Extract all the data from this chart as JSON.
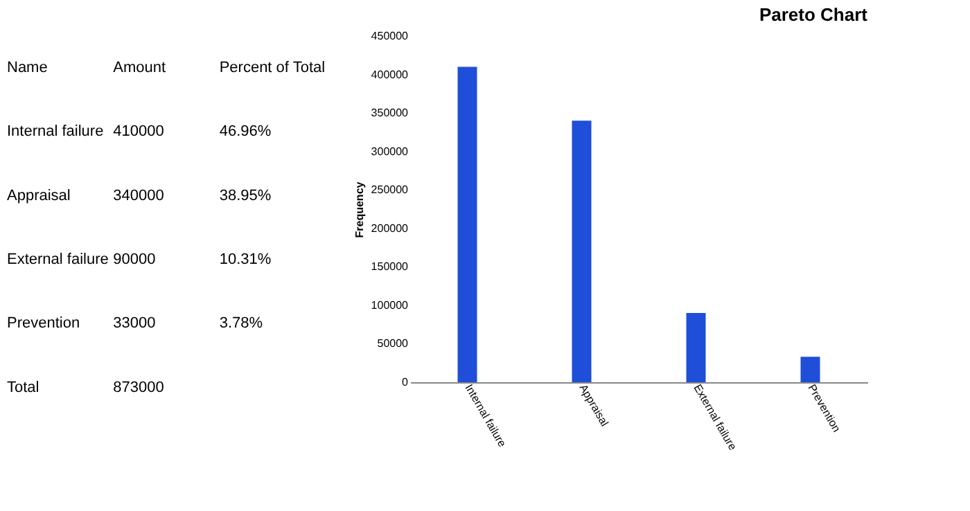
{
  "chart_data": [
    {
      "type": "other",
      "annotations": [
        "Name",
        "Amount",
        "Percent of Total",
        "Internal failure",
        "410000",
        "46.96%",
        "Appraisal",
        "340000",
        "38.95%",
        "External failure",
        "90000",
        "10.31%",
        "Prevention",
        "33000",
        "3.78%",
        "Total",
        "873000"
      ]
    },
    {
      "type": "bar",
      "title": "Pareto Chart",
      "ylabel": "Frequency",
      "categories": [
        "Internal failure",
        "Appraisal",
        "External failure",
        "Prevention"
      ],
      "values": [
        410000,
        340000,
        90000,
        33000
      ],
      "color": "#1f4fd8",
      "ylim": [
        0,
        450000
      ],
      "yticks": [
        0,
        50000,
        100000,
        150000,
        200000,
        250000,
        300000,
        350000,
        400000,
        450000
      ],
      "grid": false
    }
  ]
}
